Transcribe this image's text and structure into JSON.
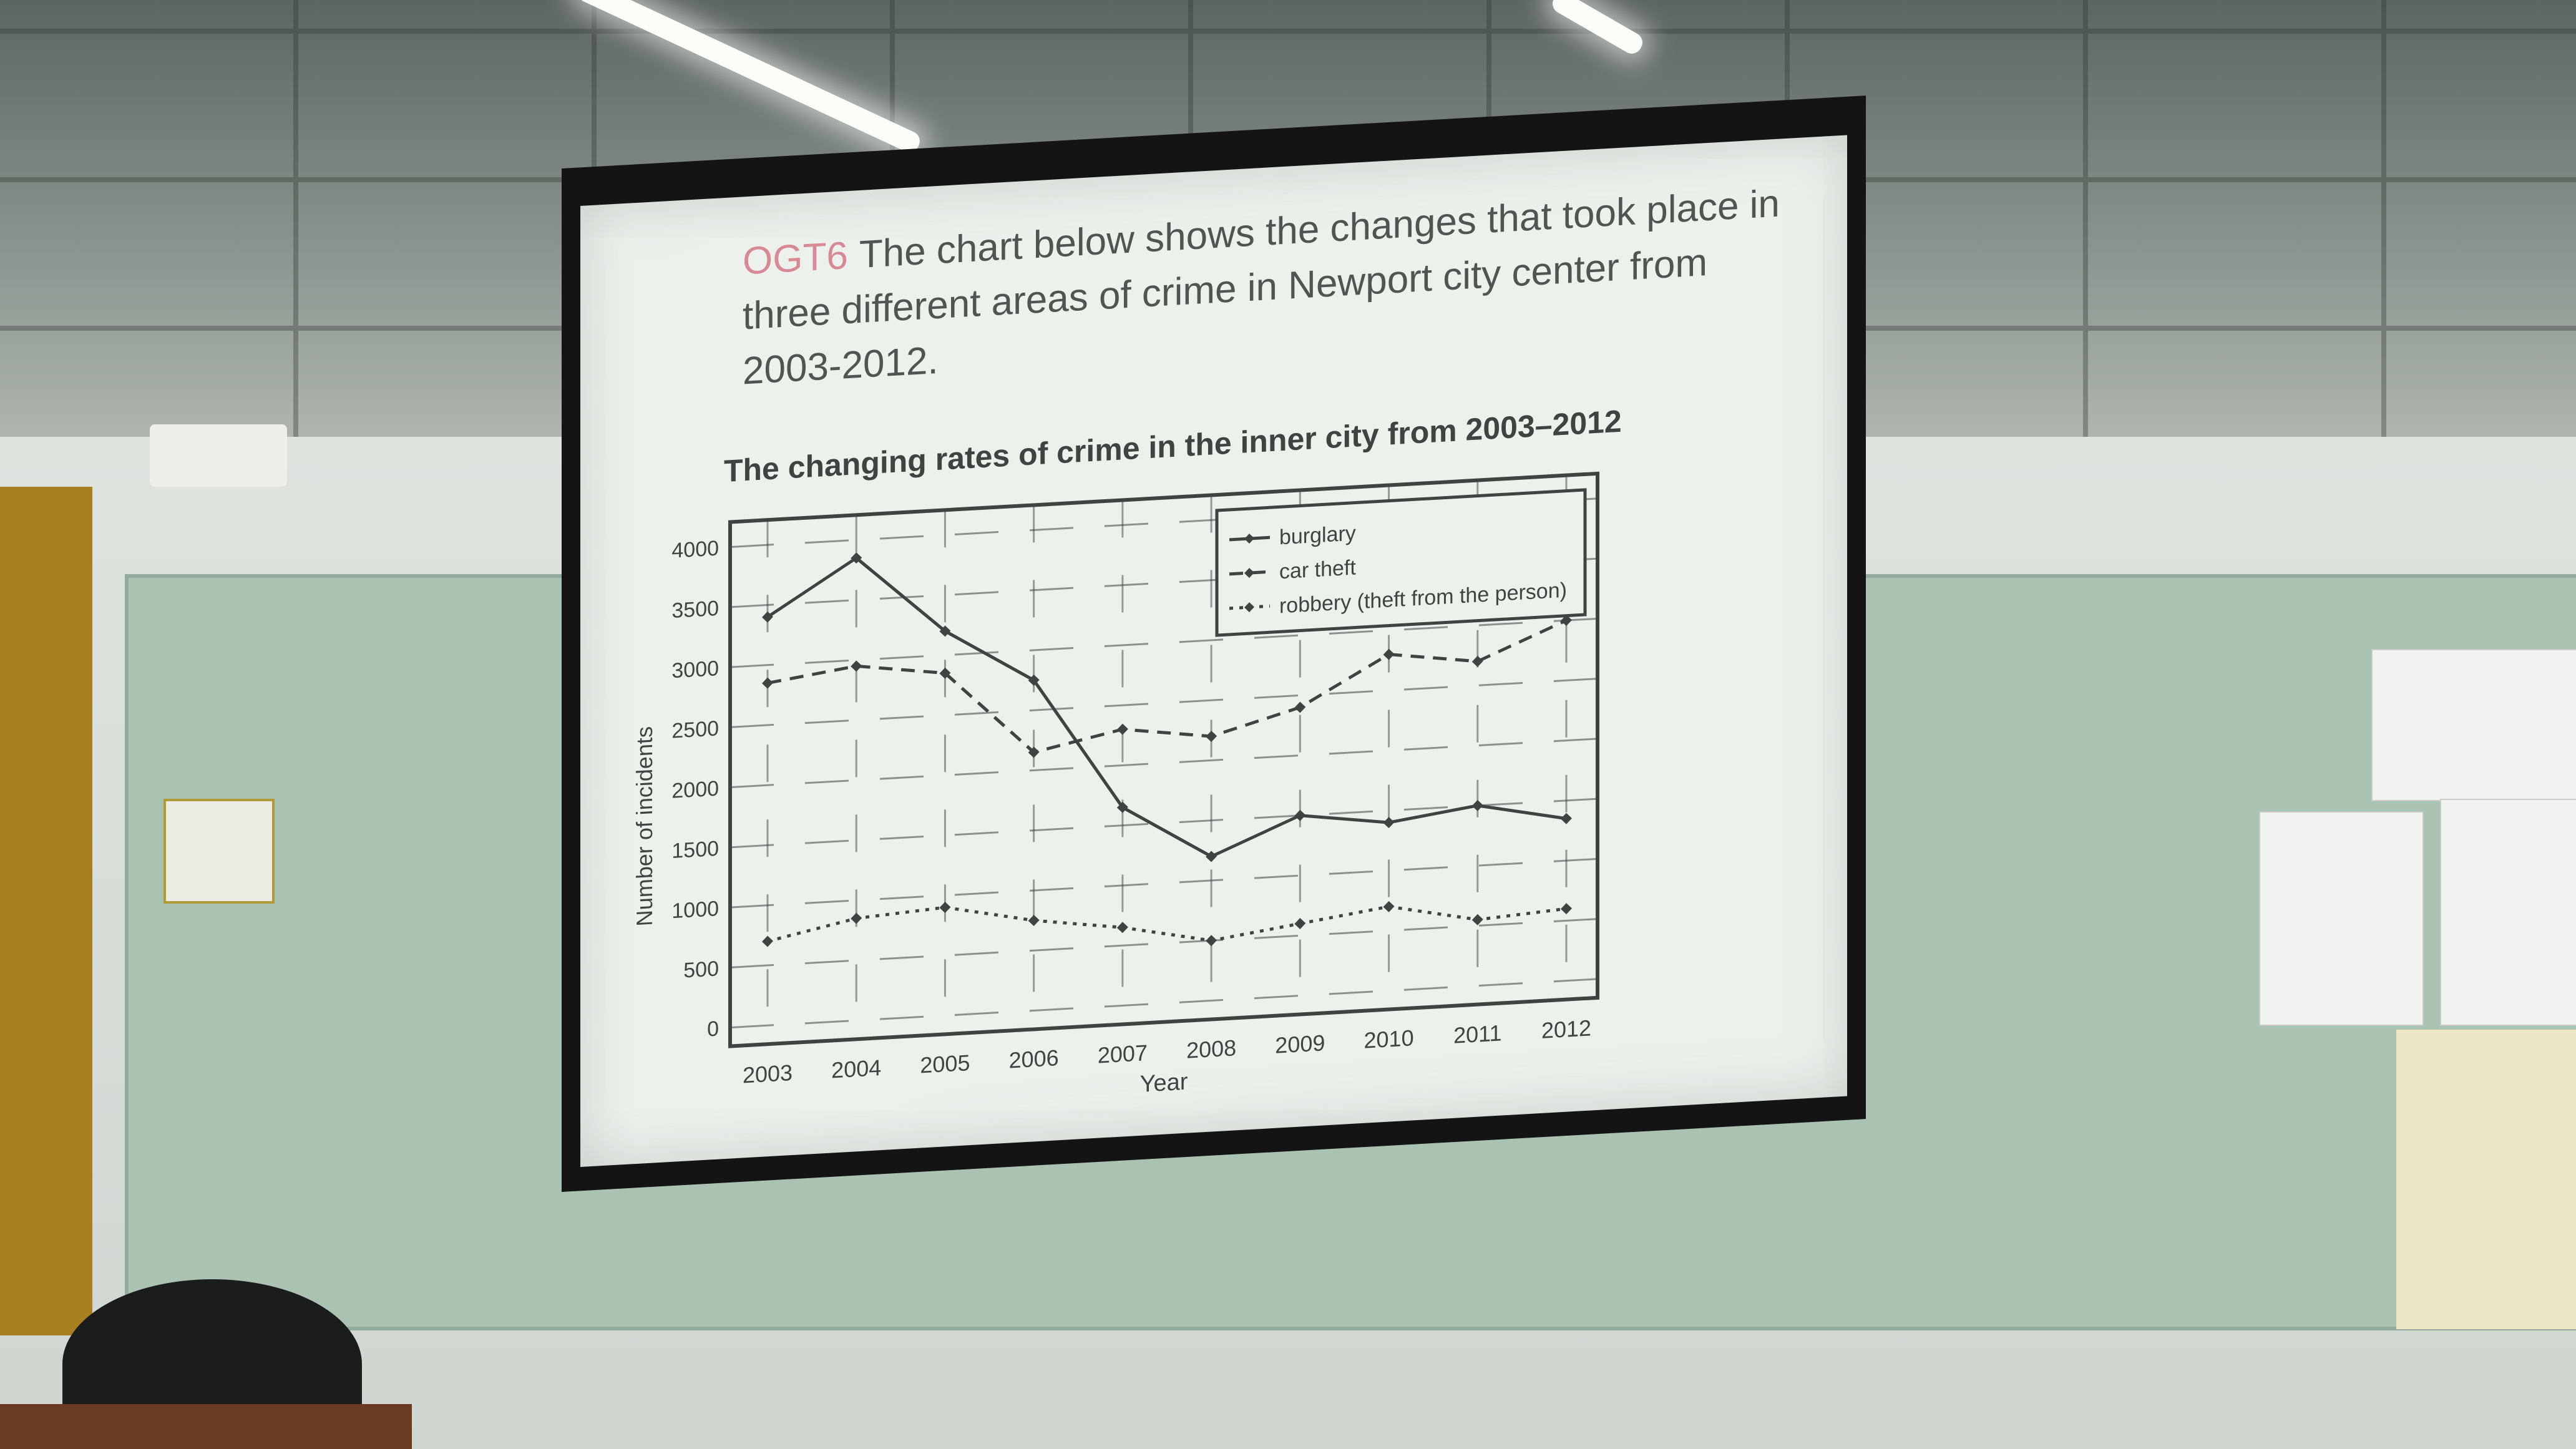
{
  "slide": {
    "code": "OGT6",
    "instruction": "The chart below shows the changes that took place in three different areas of crime in Newport city center from 2003-2012."
  },
  "chart_data": {
    "type": "line",
    "title": "The changing rates of crime in the inner city from 2003–2012",
    "xlabel": "Year",
    "ylabel": "Number of incidents",
    "categories": [
      "2003",
      "2004",
      "2005",
      "2006",
      "2007",
      "2008",
      "2009",
      "2010",
      "2011",
      "2012"
    ],
    "ylim": [
      0,
      4000
    ],
    "yticks": [
      0,
      500,
      1000,
      1500,
      2000,
      2500,
      3000,
      3500,
      4000
    ],
    "grid": true,
    "legend_position": "top-right",
    "series": [
      {
        "name": "burglary",
        "style": "solid",
        "marker": "diamond",
        "values": [
          3400,
          3850,
          3200,
          2750,
          1650,
          1200,
          1500,
          1400,
          1500,
          1350
        ]
      },
      {
        "name": "car theft",
        "style": "dashed",
        "marker": "diamond",
        "values": [
          2850,
          2950,
          2850,
          2150,
          2300,
          2200,
          2400,
          2800,
          2700,
          3000
        ]
      },
      {
        "name": "robbery (theft from the person)",
        "style": "dotted",
        "marker": "diamond",
        "values": [
          700,
          850,
          900,
          750,
          650,
          500,
          600,
          700,
          550,
          600
        ]
      }
    ]
  },
  "colors": {
    "ink": "#3e4440",
    "title_ink": "#4f5550",
    "code": "#d88a94",
    "screen": "#ecf1ec"
  }
}
